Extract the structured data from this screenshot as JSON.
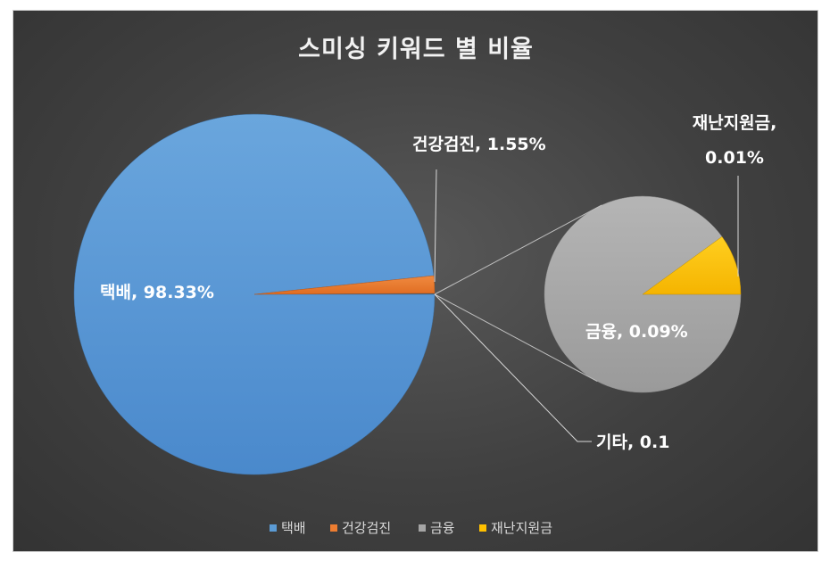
{
  "chart_data": {
    "type": "pie",
    "subtype": "pie-of-pie",
    "title": "스미싱 키워드 별 비율",
    "main_pie": {
      "slices": [
        {
          "name": "택배",
          "value": 98.33,
          "label": "택배, 98.33%",
          "color": "#5b9bd5"
        },
        {
          "name": "건강검진",
          "value": 1.55,
          "label": "건강검진, 1.55%",
          "color": "#ed7d31"
        },
        {
          "name": "기타",
          "value": 0.1,
          "label": "기타, 0.1",
          "color": "#5b9bd5"
        }
      ]
    },
    "secondary_pie": {
      "slices": [
        {
          "name": "금융",
          "value": 0.09,
          "label": "금융, 0.09%",
          "color": "#a5a5a5"
        },
        {
          "name": "재난지원금",
          "value": 0.01,
          "label_line1": "재난지원금,",
          "label_line2": "0.01%",
          "color": "#ffc000"
        }
      ]
    },
    "legend": {
      "position": "bottom",
      "items": [
        {
          "name": "택배",
          "color": "#5b9bd5"
        },
        {
          "name": "건강검진",
          "color": "#ed7d31"
        },
        {
          "name": "금융",
          "color": "#a5a5a5"
        },
        {
          "name": "재난지원금",
          "color": "#ffc000"
        }
      ]
    }
  }
}
